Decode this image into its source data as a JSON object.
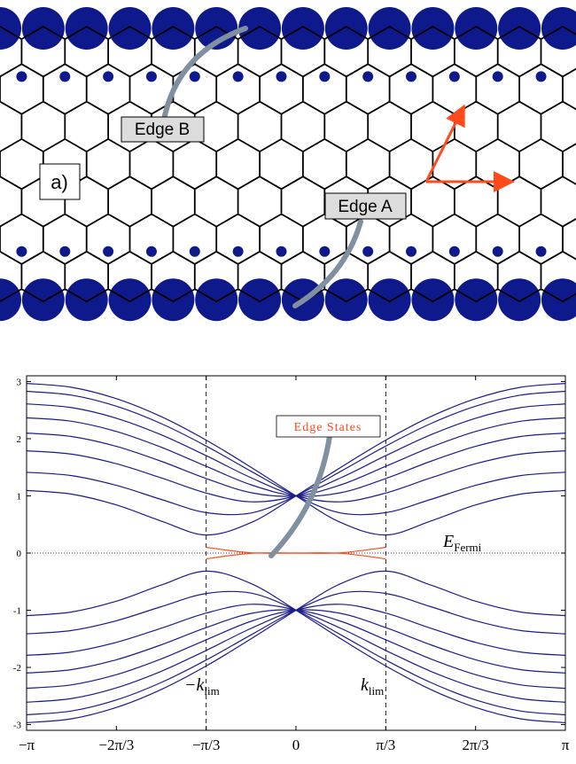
{
  "diagram": {
    "panel_label": "a)",
    "edge_b": "Edge B",
    "edge_a": "Edge A"
  },
  "chart_data": {
    "type": "line",
    "x": [
      -3.1416,
      -2.618,
      -2.0944,
      -1.5708,
      -1.0472,
      -0.5236,
      0,
      0.5236,
      1.0472,
      1.5708,
      2.0944,
      2.618,
      3.1416
    ],
    "series": [
      {
        "color": "#1c1c8a",
        "values": [
          1.095,
          1.03,
          0.842,
          0.559,
          0.316,
          0.533,
          1,
          1.501,
          1.975,
          2.385,
          2.7,
          2.899,
          2.966
        ]
      },
      {
        "color": "#1c1c8a",
        "values": [
          2.966,
          2.899,
          2.7,
          2.385,
          1.975,
          1.501,
          1,
          0.533,
          0.316,
          0.559,
          0.842,
          1.03,
          1.095
        ]
      },
      {
        "color": "#1c1c8a",
        "values": [
          1.414,
          1.354,
          1.184,
          0.937,
          0.707,
          0.701,
          1,
          1.43,
          1.871,
          2.263,
          2.569,
          2.762,
          2.828
        ]
      },
      {
        "color": "#1c1c8a",
        "values": [
          2.828,
          2.762,
          2.569,
          2.263,
          1.871,
          1.43,
          1,
          0.701,
          0.707,
          0.937,
          1.184,
          1.354,
          1.414
        ]
      },
      {
        "color": "#1c1c8a",
        "values": [
          1.789,
          1.73,
          1.562,
          1.314,
          1.049,
          0.896,
          1,
          1.317,
          1.703,
          2.067,
          2.358,
          2.544,
          2.608
        ]
      },
      {
        "color": "#1c1c8a",
        "values": [
          2.608,
          2.544,
          2.358,
          2.067,
          1.703,
          1.317,
          1,
          0.896,
          1.049,
          1.314,
          1.562,
          1.73,
          1.789
        ]
      },
      {
        "color": "#1c1c8a",
        "values": [
          2.098,
          2.038,
          1.866,
          1.605,
          1.304,
          1.055,
          1,
          1.193,
          1.517,
          1.85,
          2.126,
          2.305,
          2.366
        ]
      },
      {
        "color": "#1c1c8a",
        "values": [
          2.366,
          2.305,
          2.126,
          1.85,
          1.517,
          1.193,
          1,
          1.055,
          1.304,
          1.605,
          1.866,
          2.038,
          2.098
        ]
      },
      {
        "color": "#1c1c8a",
        "values": [
          -1.095,
          -1.03,
          -0.842,
          -0.559,
          -0.316,
          -0.533,
          -1,
          -1.501,
          -1.975,
          -2.385,
          -2.7,
          -2.899,
          -2.966
        ]
      },
      {
        "color": "#1c1c8a",
        "values": [
          -2.966,
          -2.899,
          -2.7,
          -2.385,
          -1.975,
          -1.501,
          -1,
          -0.533,
          -0.316,
          -0.559,
          -0.842,
          -1.03,
          -1.095
        ]
      },
      {
        "color": "#1c1c8a",
        "values": [
          -1.414,
          -1.354,
          -1.184,
          -0.937,
          -0.707,
          -0.701,
          -1,
          -1.43,
          -1.871,
          -2.263,
          -2.569,
          -2.762,
          -2.828
        ]
      },
      {
        "color": "#1c1c8a",
        "values": [
          -2.828,
          -2.762,
          -2.569,
          -2.263,
          -1.871,
          -1.43,
          -1,
          -0.701,
          -0.707,
          -0.937,
          -1.184,
          -1.354,
          -1.414
        ]
      },
      {
        "color": "#1c1c8a",
        "values": [
          -1.789,
          -1.73,
          -1.562,
          -1.314,
          -1.049,
          -0.896,
          -1,
          -1.317,
          -1.703,
          -2.067,
          -2.358,
          -2.544,
          -2.608
        ]
      },
      {
        "color": "#1c1c8a",
        "values": [
          -2.608,
          -2.544,
          -2.358,
          -2.067,
          -1.703,
          -1.317,
          -1,
          -0.896,
          -1.049,
          -1.314,
          -1.562,
          -1.73,
          -1.789
        ]
      },
      {
        "color": "#1c1c8a",
        "values": [
          -2.098,
          -2.038,
          -1.866,
          -1.605,
          -1.304,
          -1.055,
          -1,
          -1.193,
          -1.517,
          -1.85,
          -2.126,
          -2.305,
          -2.366
        ]
      },
      {
        "color": "#1c1c8a",
        "values": [
          -2.366,
          -2.305,
          -2.126,
          -1.85,
          -1.517,
          -1.193,
          -1,
          -1.055,
          -1.304,
          -1.605,
          -1.866,
          -2.038,
          -2.098
        ]
      },
      {
        "color": "#ff4a1c",
        "values": [
          null,
          null,
          null,
          null,
          0.1,
          0.005,
          0,
          0.005,
          0.1,
          null,
          null,
          null,
          null
        ]
      },
      {
        "color": "#ff4a1c",
        "values": [
          null,
          null,
          null,
          null,
          -0.1,
          -0.005,
          0,
          -0.005,
          -0.1,
          null,
          null,
          null,
          null
        ]
      }
    ],
    "xlim": [
      -3.1416,
      3.1416
    ],
    "ylim": [
      -3.1,
      3.1
    ],
    "xticks": [
      {
        "value": -3.1416,
        "label": "−π"
      },
      {
        "value": -2.0944,
        "label": "−2π/3"
      },
      {
        "value": -1.0472,
        "label": "−π/3"
      },
      0,
      {
        "value": 1.0472,
        "label": "π/3"
      },
      {
        "value": 2.0944,
        "label": "2π/3"
      },
      {
        "value": 3.1416,
        "label": "π"
      }
    ],
    "yticks": [
      -3,
      -2,
      -1,
      0,
      1,
      2,
      3
    ],
    "vlines": [
      -1.0472,
      1.0472
    ],
    "hline": 0,
    "annotations": {
      "edge_states": "Edge States",
      "fermi": {
        "main": "E",
        "sub": "Fermi"
      },
      "k_minus": {
        "main": "−k",
        "sub": "lim"
      },
      "k_plus": {
        "main": "k",
        "sub": "lim"
      }
    }
  }
}
